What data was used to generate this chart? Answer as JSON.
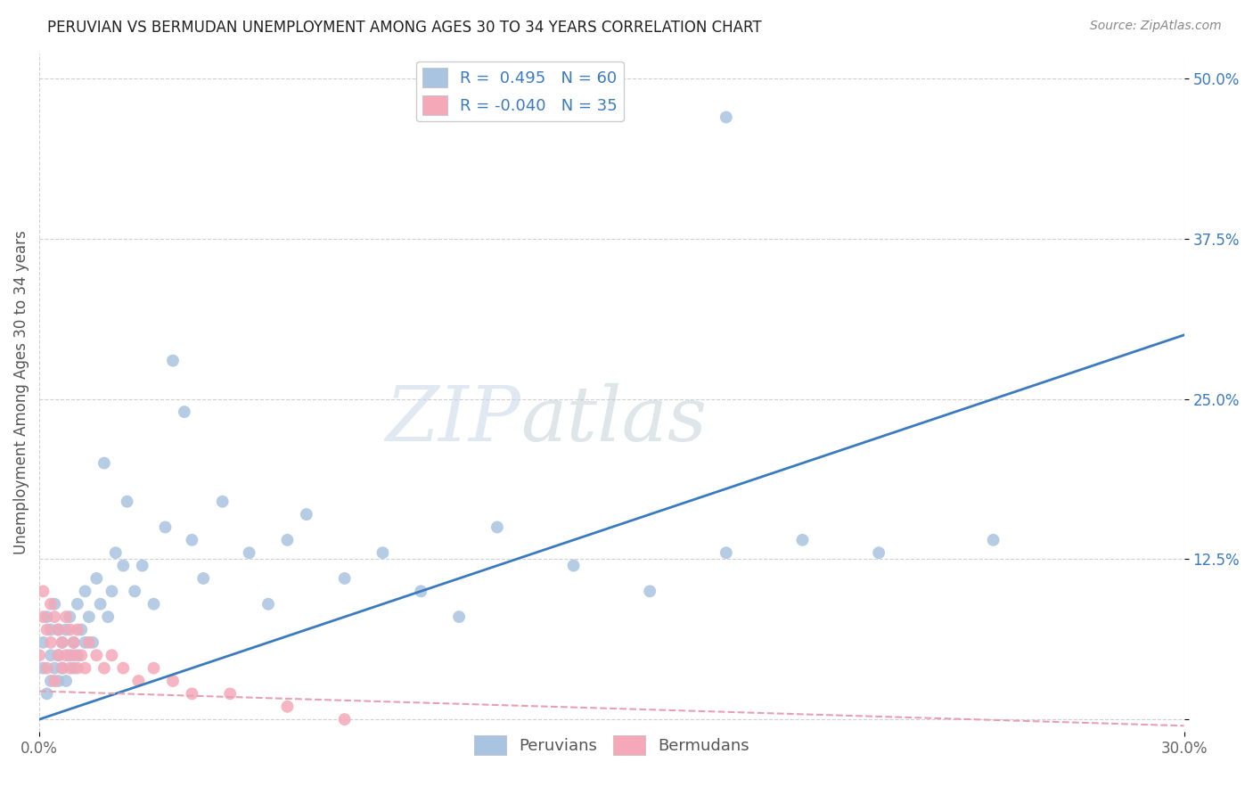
{
  "title": "PERUVIAN VS BERMUDAN UNEMPLOYMENT AMONG AGES 30 TO 34 YEARS CORRELATION CHART",
  "source": "Source: ZipAtlas.com",
  "ylabel": "Unemployment Among Ages 30 to 34 years",
  "xlim": [
    0.0,
    0.3
  ],
  "ylim": [
    -0.01,
    0.52
  ],
  "ytick_positions": [
    0.0,
    0.125,
    0.25,
    0.375,
    0.5
  ],
  "ytick_labels": [
    "",
    "12.5%",
    "25.0%",
    "37.5%",
    "50.0%"
  ],
  "peruvian_color": "#a8c4e0",
  "bermudan_color": "#f4a8b8",
  "peruvian_line_color": "#3a7bbf",
  "bermudan_line_color": "#e8a0b0",
  "legend_R_peru": " 0.495",
  "legend_N_peru": "60",
  "legend_R_berm": "-0.040",
  "legend_N_berm": "35",
  "watermark_zip": "ZIP",
  "watermark_atlas": "atlas",
  "peru_trend_x0": 0.0,
  "peru_trend_y0": 0.0,
  "peru_trend_x1": 0.3,
  "peru_trend_y1": 0.3,
  "berm_trend_x0": 0.0,
  "berm_trend_y0": 0.022,
  "berm_trend_x1": 0.3,
  "berm_trend_y1": -0.005,
  "peruvian_x": [
    0.001,
    0.001,
    0.002,
    0.002,
    0.003,
    0.003,
    0.003,
    0.004,
    0.004,
    0.005,
    0.005,
    0.005,
    0.006,
    0.006,
    0.007,
    0.007,
    0.008,
    0.008,
    0.009,
    0.009,
    0.01,
    0.01,
    0.011,
    0.012,
    0.012,
    0.013,
    0.014,
    0.015,
    0.016,
    0.017,
    0.018,
    0.019,
    0.02,
    0.022,
    0.023,
    0.025,
    0.027,
    0.03,
    0.033,
    0.035,
    0.038,
    0.04,
    0.043,
    0.048,
    0.055,
    0.06,
    0.065,
    0.07,
    0.08,
    0.09,
    0.1,
    0.11,
    0.12,
    0.14,
    0.16,
    0.18,
    0.2,
    0.22,
    0.25,
    0.18
  ],
  "peruvian_y": [
    0.04,
    0.06,
    0.02,
    0.08,
    0.03,
    0.05,
    0.07,
    0.04,
    0.09,
    0.03,
    0.05,
    0.07,
    0.04,
    0.06,
    0.03,
    0.07,
    0.05,
    0.08,
    0.04,
    0.06,
    0.05,
    0.09,
    0.07,
    0.06,
    0.1,
    0.08,
    0.06,
    0.11,
    0.09,
    0.2,
    0.08,
    0.1,
    0.13,
    0.12,
    0.17,
    0.1,
    0.12,
    0.09,
    0.15,
    0.28,
    0.24,
    0.14,
    0.11,
    0.17,
    0.13,
    0.09,
    0.14,
    0.16,
    0.11,
    0.13,
    0.1,
    0.08,
    0.15,
    0.12,
    0.1,
    0.13,
    0.14,
    0.13,
    0.14,
    0.47
  ],
  "bermudan_x": [
    0.0,
    0.001,
    0.001,
    0.002,
    0.002,
    0.003,
    0.003,
    0.004,
    0.004,
    0.005,
    0.005,
    0.006,
    0.006,
    0.007,
    0.007,
    0.008,
    0.008,
    0.009,
    0.009,
    0.01,
    0.01,
    0.011,
    0.012,
    0.013,
    0.015,
    0.017,
    0.019,
    0.022,
    0.026,
    0.03,
    0.035,
    0.04,
    0.05,
    0.065,
    0.08
  ],
  "bermudan_y": [
    0.05,
    0.08,
    0.1,
    0.04,
    0.07,
    0.06,
    0.09,
    0.03,
    0.08,
    0.05,
    0.07,
    0.04,
    0.06,
    0.05,
    0.08,
    0.04,
    0.07,
    0.05,
    0.06,
    0.04,
    0.07,
    0.05,
    0.04,
    0.06,
    0.05,
    0.04,
    0.05,
    0.04,
    0.03,
    0.04,
    0.03,
    0.02,
    0.02,
    0.01,
    0.0
  ]
}
